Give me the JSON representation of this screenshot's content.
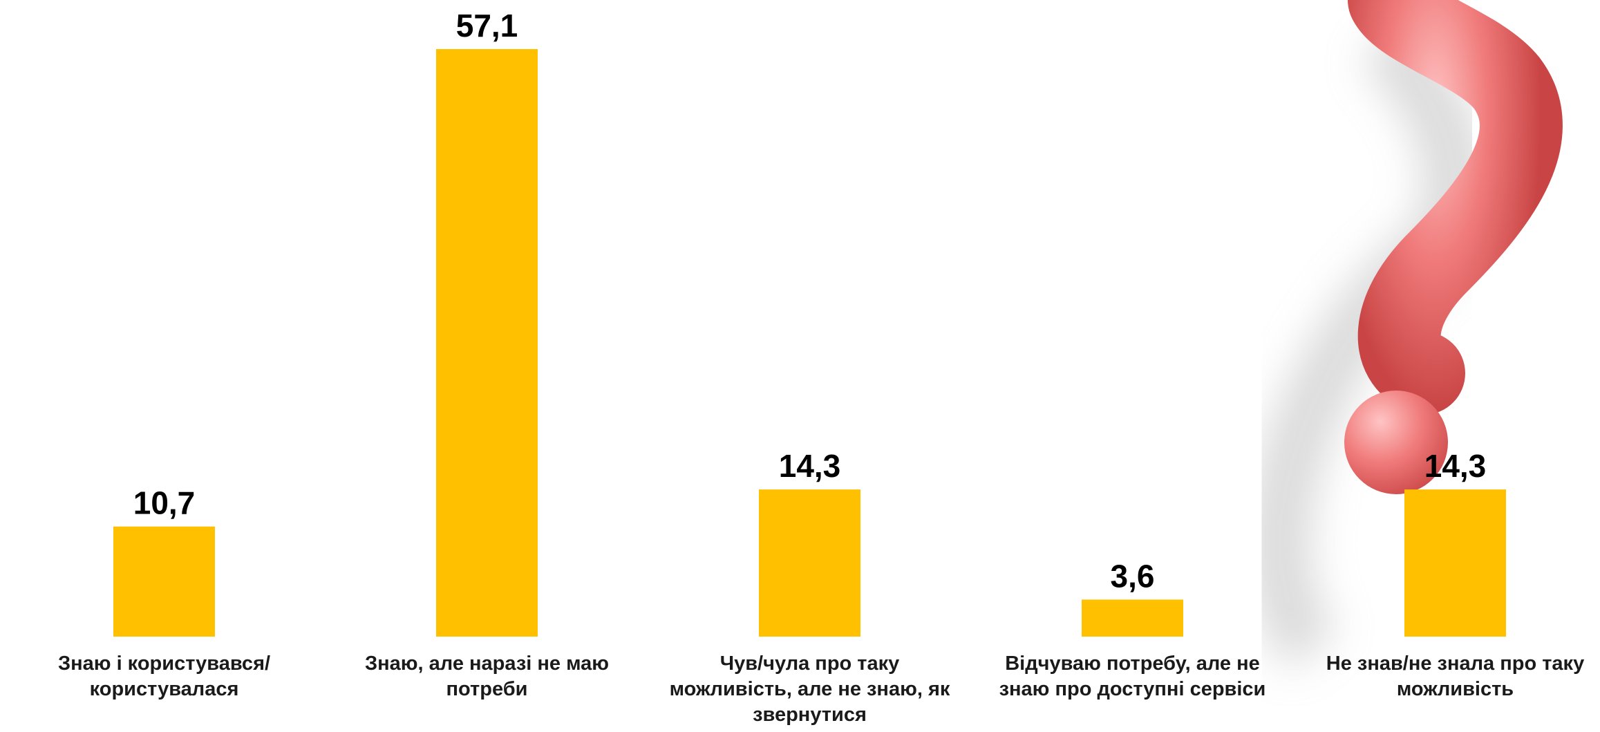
{
  "chart_data": {
    "type": "bar",
    "categories": [
      "Знаю і користувався/користувалася",
      "Знаю, але наразі не маю потреби",
      "Чув/чула про таку можливість, але не знаю, як звернутися",
      "Відчуваю потребу, але не знаю про доступні сервіси",
      "Не знав/не знала про таку можливість"
    ],
    "values": [
      10.7,
      57.1,
      14.3,
      3.6,
      14.3
    ],
    "value_labels": [
      "10,7",
      "57,1",
      "14,3",
      "3,6",
      "14,3"
    ],
    "color": "#ffc000"
  }
}
